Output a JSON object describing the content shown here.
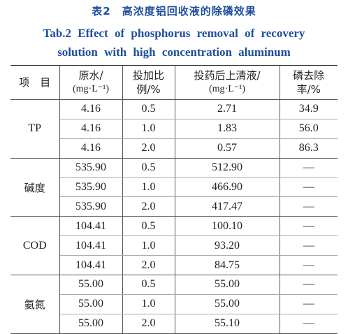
{
  "caption": {
    "cn": "表2　高浓度铝回收液的除磷效果",
    "en_line1": "Tab.2 Effect of phosphorus removal of recovery",
    "en_line2": "solution with high concentration aluminum"
  },
  "headers": {
    "item": "项　目",
    "raw_line1": "原水/",
    "raw_line2": "(mg·L⁻¹)",
    "ratio_line1": "投加比",
    "ratio_line2": "例/%",
    "after_line1": "投药后上清液/",
    "after_line2": "(mg·L⁻¹)",
    "removal_line1": "磷去除",
    "removal_line2": "率/%"
  },
  "groups": [
    {
      "item": "TP",
      "rows": [
        {
          "raw": "4.16",
          "ratio": "0.5",
          "after": "2.71",
          "removal": "34.9"
        },
        {
          "raw": "4.16",
          "ratio": "1.0",
          "after": "1.83",
          "removal": "56.0"
        },
        {
          "raw": "4.16",
          "ratio": "2.0",
          "after": "0.57",
          "removal": "86.3"
        }
      ]
    },
    {
      "item": "碱度",
      "rows": [
        {
          "raw": "535.90",
          "ratio": "0.5",
          "after": "512.90",
          "removal": "—"
        },
        {
          "raw": "535.90",
          "ratio": "1.0",
          "after": "466.90",
          "removal": "—"
        },
        {
          "raw": "535.90",
          "ratio": "2.0",
          "after": "417.47",
          "removal": "—"
        }
      ]
    },
    {
      "item": "COD",
      "rows": [
        {
          "raw": "104.41",
          "ratio": "0.5",
          "after": "100.10",
          "removal": "—"
        },
        {
          "raw": "104.41",
          "ratio": "1.0",
          "after": "93.20",
          "removal": "—"
        },
        {
          "raw": "104.41",
          "ratio": "2.0",
          "after": "84.75",
          "removal": "—"
        }
      ]
    },
    {
      "item": "氨氮",
      "rows": [
        {
          "raw": "55.00",
          "ratio": "0.5",
          "after": "55.00",
          "removal": "—"
        },
        {
          "raw": "55.00",
          "ratio": "1.0",
          "after": "55.00",
          "removal": "—"
        },
        {
          "raw": "55.00",
          "ratio": "2.0",
          "after": "55.10",
          "removal": "—"
        }
      ]
    }
  ]
}
